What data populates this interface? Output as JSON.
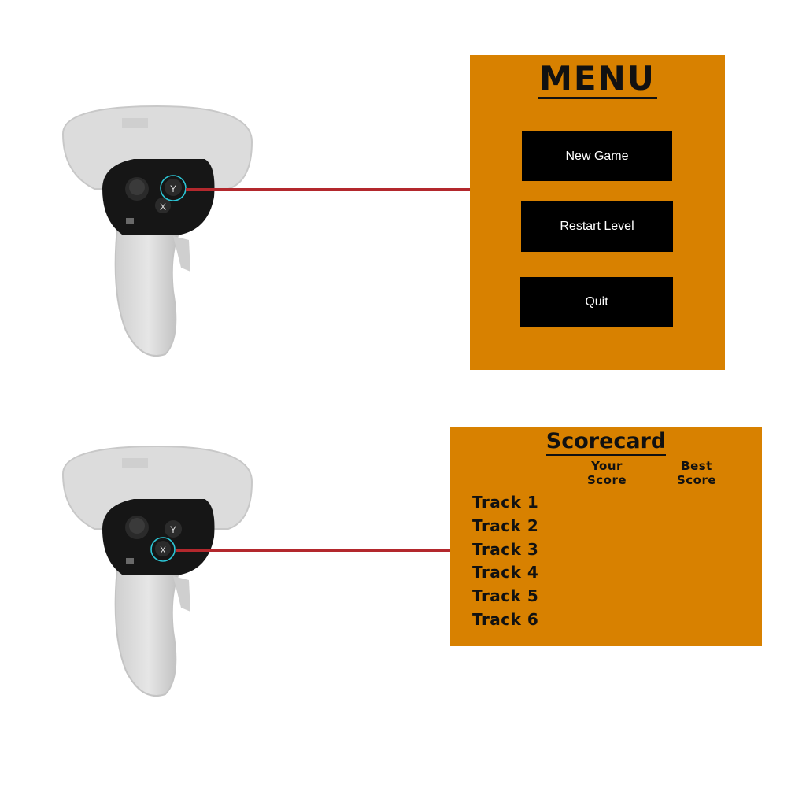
{
  "top_controller": {
    "labels": {
      "y": "Y",
      "x": "X"
    },
    "highlighted": "Y"
  },
  "bottom_controller": {
    "labels": {
      "y": "Y",
      "x": "X"
    },
    "highlighted": "X"
  },
  "menu": {
    "title": "MENU",
    "buttons": {
      "new_game": "New Game",
      "restart_level": "Restart Level",
      "quit": "Quit"
    }
  },
  "scorecard": {
    "title": "Scorecard",
    "columns": {
      "your_score_line1": "Your",
      "your_score_line2": "Score",
      "best_score_line1": "Best",
      "best_score_line2": "Score"
    },
    "tracks": [
      "Track 1",
      "Track 2",
      "Track 3",
      "Track 4",
      "Track 5",
      "Track 6"
    ]
  },
  "colors": {
    "panel": "#d88100",
    "button": "#000000",
    "connector": "#b3282d",
    "highlight_ring": "#2cc6d6"
  },
  "icons": [
    "vr-controller-icon",
    "thumbstick-icon",
    "menu-button-icon"
  ]
}
